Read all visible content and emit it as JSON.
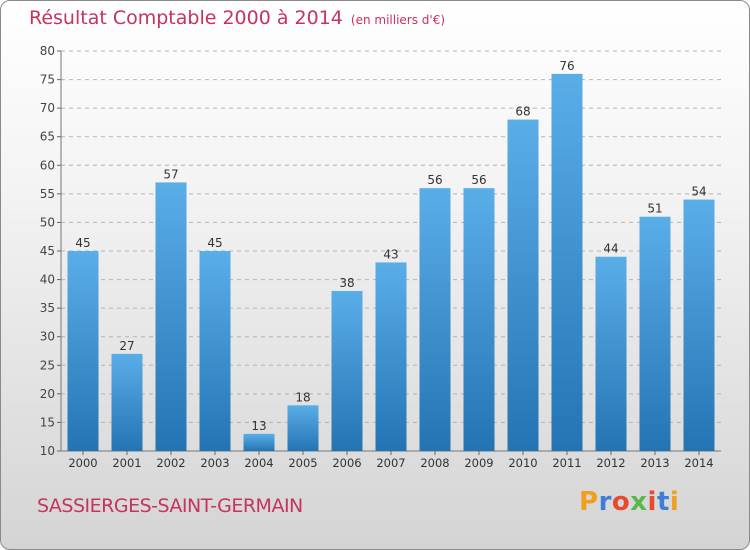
{
  "title": "Résultat Comptable 2000 à 2014",
  "subtitle": "(en milliers d'€)",
  "commune": "SASSIERGES-SAINT-GERMAIN",
  "logo": {
    "text": "Proxiti",
    "letter_colors": [
      "#f0a020",
      "#3e7ed8",
      "#e84a2e",
      "#58b84a",
      "#e84a2e",
      "#3e7ed8",
      "#f0a020"
    ]
  },
  "colors": {
    "bar_top": "#5aaee8",
    "bar_bottom": "#2474b4",
    "text_accent": "#c4345c"
  },
  "chart_data": {
    "type": "bar",
    "categories": [
      "2000",
      "2001",
      "2002",
      "2003",
      "2004",
      "2005",
      "2006",
      "2007",
      "2008",
      "2009",
      "2010",
      "2011",
      "2012",
      "2013",
      "2014"
    ],
    "values": [
      45,
      27,
      57,
      45,
      13,
      18,
      38,
      43,
      56,
      56,
      68,
      76,
      44,
      51,
      54
    ],
    "ylim": [
      10,
      80
    ],
    "yticks": [
      10,
      15,
      20,
      25,
      30,
      35,
      40,
      45,
      50,
      55,
      60,
      65,
      70,
      75,
      80
    ],
    "grid": true,
    "title": "Résultat Comptable 2000 à 2014",
    "xlabel": "",
    "ylabel": ""
  }
}
